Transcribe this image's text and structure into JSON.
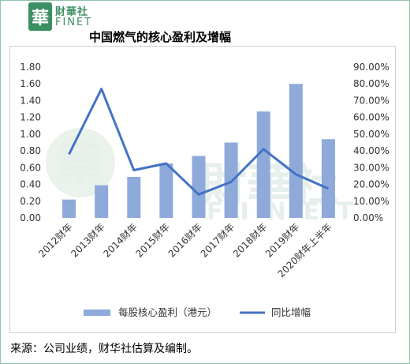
{
  "brand": {
    "mark": "華",
    "name_cn": "財華社",
    "name_en": "FINET"
  },
  "title": "中国燃气的核心盈利及增幅",
  "source": "来源：公司业绩，财华社估算及编制。",
  "watermark": {
    "mark": "華",
    "name_cn": "財華社",
    "name_en": "FINET"
  },
  "colors": {
    "bar": "#8eaadb",
    "line": "#4472c4",
    "brand": "#3d8f63"
  },
  "chart_data": {
    "type": "bar",
    "categories": [
      "2012财年",
      "2013财年",
      "2014财年",
      "2015财年",
      "2016财年",
      "2017财年",
      "2018财年",
      "2019财年",
      "2020财年上半年"
    ],
    "series": [
      {
        "name": "每股核心盈利（港元）",
        "type": "bar",
        "axis": "left",
        "values": [
          0.22,
          0.39,
          0.49,
          0.65,
          0.74,
          0.9,
          1.27,
          1.6,
          0.94
        ]
      },
      {
        "name": "同比增幅",
        "type": "line",
        "axis": "right",
        "values": [
          38,
          77,
          28.5,
          32.5,
          14,
          21.5,
          41,
          26,
          17.5
        ]
      }
    ],
    "y_left": {
      "min": 0,
      "max": 1.8,
      "ticks": [
        "0.00",
        "0.20",
        "0.40",
        "0.60",
        "0.80",
        "1.00",
        "1.20",
        "1.40",
        "1.60",
        "1.80"
      ]
    },
    "y_right": {
      "min": 0,
      "max": 90,
      "ticks": [
        "0.00%",
        "10.00%",
        "20.00%",
        "30.00%",
        "40.00%",
        "50.00%",
        "60.00%",
        "70.00%",
        "80.00%",
        "90.00%"
      ]
    },
    "grid": false,
    "legend": "bottom"
  }
}
